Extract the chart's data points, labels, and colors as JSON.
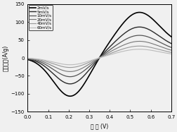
{
  "title": "",
  "xlabel": "电 压 (V)",
  "ylabel": "电流密度(A/g)",
  "xlim": [
    0.0,
    0.7
  ],
  "ylim": [
    -150,
    150
  ],
  "xticks": [
    0.0,
    0.1,
    0.2,
    0.3,
    0.4,
    0.5,
    0.6,
    0.7
  ],
  "yticks": [
    -150,
    -100,
    -50,
    0,
    50,
    100,
    150
  ],
  "scan_rates": [
    "2mV/s",
    "5mV/s",
    "10mV/s",
    "20mV/s",
    "40mV/s",
    "60mV/s"
  ],
  "line_colors": [
    "#000000",
    "#2a2a2a",
    "#555555",
    "#777777",
    "#999999",
    "#bbbbbb"
  ],
  "line_widths": [
    1.2,
    1.0,
    0.9,
    0.8,
    0.8,
    0.8
  ],
  "background_color": "#f0f0f0",
  "amplitudes": [
    115,
    78,
    57,
    42,
    30,
    22
  ],
  "neg_amplitudes": [
    112,
    76,
    55,
    40,
    28,
    20
  ]
}
